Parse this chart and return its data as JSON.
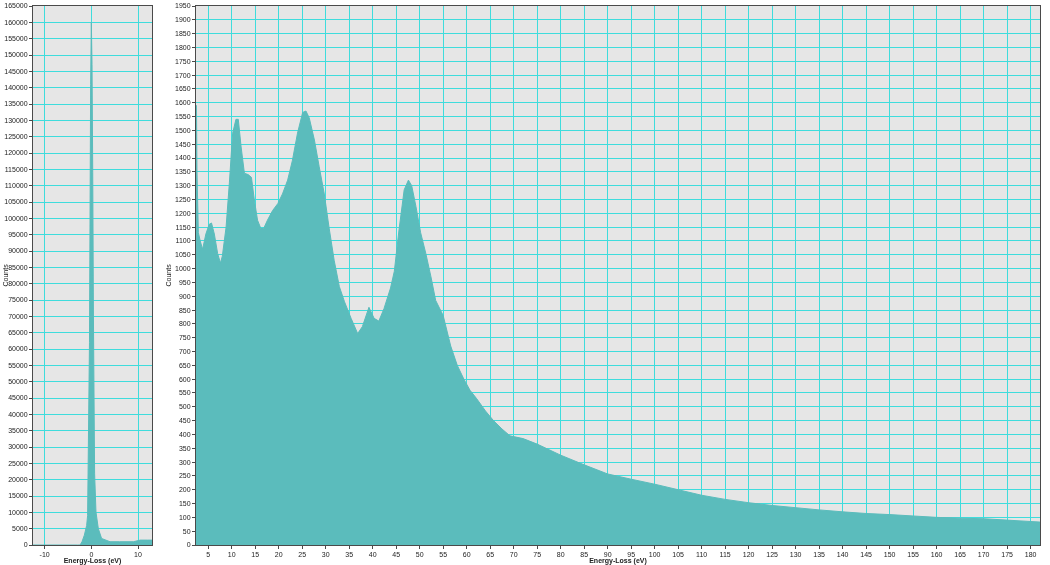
{
  "chart_data": [
    {
      "type": "area",
      "xlabel": "Energy-Loss (eV)",
      "ylabel": "Counts",
      "x": [
        -12.5,
        -3,
        -2.4,
        -2,
        -1.5,
        -1,
        -0.8,
        -0.7,
        -0.4,
        -0.15,
        0,
        0.15,
        0.3,
        0.45,
        0.7,
        1,
        1.5,
        2.2,
        4,
        6,
        9,
        10.5,
        12,
        13
      ],
      "series": [
        {
          "color": "#5bbcbc",
          "values": [
            0,
            0,
            0,
            1000,
            3000,
            6000,
            9000,
            22000,
            62000,
            141000,
            160000,
            147000,
            114000,
            70000,
            22000,
            10000,
            5000,
            2000,
            1000,
            1000,
            1000,
            1500,
            1500,
            1500
          ]
        }
      ],
      "xlim": [
        -12.5,
        13
      ],
      "xticks": [
        -10,
        0,
        10
      ],
      "ylim": [
        0,
        165000
      ],
      "yticks": [
        0,
        5000,
        10000,
        15000,
        20000,
        25000,
        30000,
        35000,
        40000,
        45000,
        50000,
        55000,
        60000,
        65000,
        70000,
        75000,
        80000,
        85000,
        90000,
        95000,
        100000,
        105000,
        110000,
        115000,
        120000,
        125000,
        130000,
        135000,
        140000,
        145000,
        150000,
        155000,
        160000,
        165000
      ],
      "grid": true
    },
    {
      "type": "area",
      "xlabel": "Energy-Loss (eV)",
      "ylabel": "Counts",
      "x": [
        2.4,
        2.5,
        2.6,
        2.9,
        3.3,
        3.8,
        4.5,
        5.2,
        5.7,
        6.3,
        7.0,
        7.6,
        8.0,
        8.8,
        9.5,
        10.2,
        10.9,
        11.4,
        12.0,
        12.7,
        13.5,
        14.2,
        14.8,
        15.5,
        16.2,
        16.8,
        17.6,
        18.7,
        19.8,
        20.8,
        21.9,
        22.9,
        24.0,
        25.1,
        25.8,
        26.5,
        27.6,
        28.6,
        29.7,
        30.7,
        31.8,
        32.9,
        34.0,
        35.4,
        36.8,
        37.8,
        39.2,
        40.3,
        41.3,
        42.4,
        43.8,
        44.6,
        45.6,
        46.7,
        47.6,
        48.3,
        49.2,
        50.2,
        51.3,
        52.4,
        53.4,
        55.0,
        56.6,
        58.0,
        59.4,
        60.7,
        62.1,
        64.0,
        65.7,
        67.5,
        69.2,
        72,
        75,
        80,
        85,
        90,
        95,
        100,
        105,
        110,
        115,
        120,
        125,
        130,
        135,
        140,
        145,
        150,
        155,
        160,
        165,
        170,
        175,
        180,
        182
      ],
      "series": [
        {
          "color": "#5bbcbc",
          "values": [
            1590,
            1590,
            1360,
            1130,
            1100,
            1070,
            1125,
            1160,
            1165,
            1125,
            1055,
            1020,
            1045,
            1150,
            1310,
            1490,
            1540,
            1540,
            1440,
            1345,
            1340,
            1330,
            1250,
            1175,
            1145,
            1145,
            1175,
            1210,
            1235,
            1270,
            1320,
            1390,
            1490,
            1565,
            1570,
            1545,
            1465,
            1370,
            1270,
            1150,
            1030,
            935,
            880,
            820,
            765,
            790,
            860,
            820,
            810,
            855,
            930,
            990,
            1140,
            1285,
            1320,
            1300,
            1225,
            1130,
            1055,
            970,
            885,
            830,
            720,
            650,
            600,
            560,
            530,
            485,
            450,
            420,
            395,
            385,
            365,
            325,
            290,
            257,
            238,
            220,
            200,
            180,
            165,
            153,
            143,
            135,
            127,
            120,
            114,
            110,
            105,
            100,
            97,
            95,
            90,
            85,
            83
          ]
        }
      ],
      "xlim": [
        2.4,
        182
      ],
      "xticks": [
        5,
        10,
        15,
        20,
        25,
        30,
        35,
        40,
        45,
        50,
        55,
        60,
        65,
        70,
        75,
        80,
        85,
        90,
        95,
        100,
        105,
        110,
        115,
        120,
        125,
        130,
        135,
        140,
        145,
        150,
        155,
        160,
        165,
        170,
        175,
        180
      ],
      "ylim": [
        0,
        1950
      ],
      "yticks": [
        0,
        50,
        100,
        150,
        200,
        250,
        300,
        350,
        400,
        450,
        500,
        550,
        600,
        650,
        700,
        750,
        800,
        850,
        900,
        950,
        1000,
        1050,
        1100,
        1150,
        1200,
        1250,
        1300,
        1350,
        1400,
        1450,
        1500,
        1550,
        1600,
        1650,
        1700,
        1750,
        1800,
        1850,
        1900,
        1950
      ],
      "grid": true
    }
  ]
}
